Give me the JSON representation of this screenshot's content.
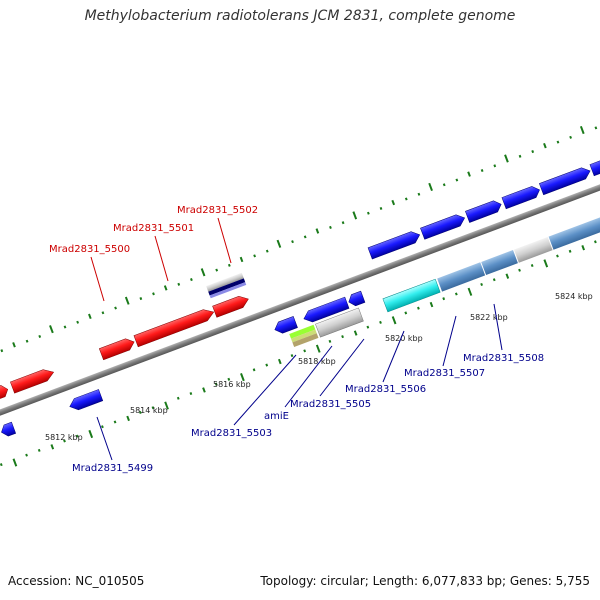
{
  "title": "Methylobacterium radiotolerans JCM 2831, complete genome",
  "footer": {
    "accession": "Accession: NC_010505",
    "topology": "Topology: circular; Length: 6,077,833 bp; Genes: 5,755"
  },
  "colors": {
    "forward_label": "#cc0000",
    "reverse_label": "#00008b",
    "backbone": "#808080",
    "tick": "#1a7a1a"
  },
  "scale_ticks": [
    {
      "label": "5812 kbp"
    },
    {
      "label": "5814 kbp"
    },
    {
      "label": "5816 kbp"
    },
    {
      "label": "5818 kbp"
    },
    {
      "label": "5820 kbp"
    },
    {
      "label": "5822 kbp"
    },
    {
      "label": "5824 kbp"
    }
  ],
  "gene_labels": [
    {
      "text": "Mrad2831_5500",
      "strand": "forward"
    },
    {
      "text": "Mrad2831_5501",
      "strand": "forward"
    },
    {
      "text": "Mrad2831_5502",
      "strand": "forward"
    },
    {
      "text": "Mrad2831_5499",
      "strand": "reverse"
    },
    {
      "text": "Mrad2831_5503",
      "strand": "reverse"
    },
    {
      "text": "amiE",
      "strand": "reverse"
    },
    {
      "text": "Mrad2831_5505",
      "strand": "reverse"
    },
    {
      "text": "Mrad2831_5506",
      "strand": "reverse"
    },
    {
      "text": "Mrad2831_5507",
      "strand": "reverse"
    },
    {
      "text": "Mrad2831_5508",
      "strand": "reverse"
    }
  ]
}
